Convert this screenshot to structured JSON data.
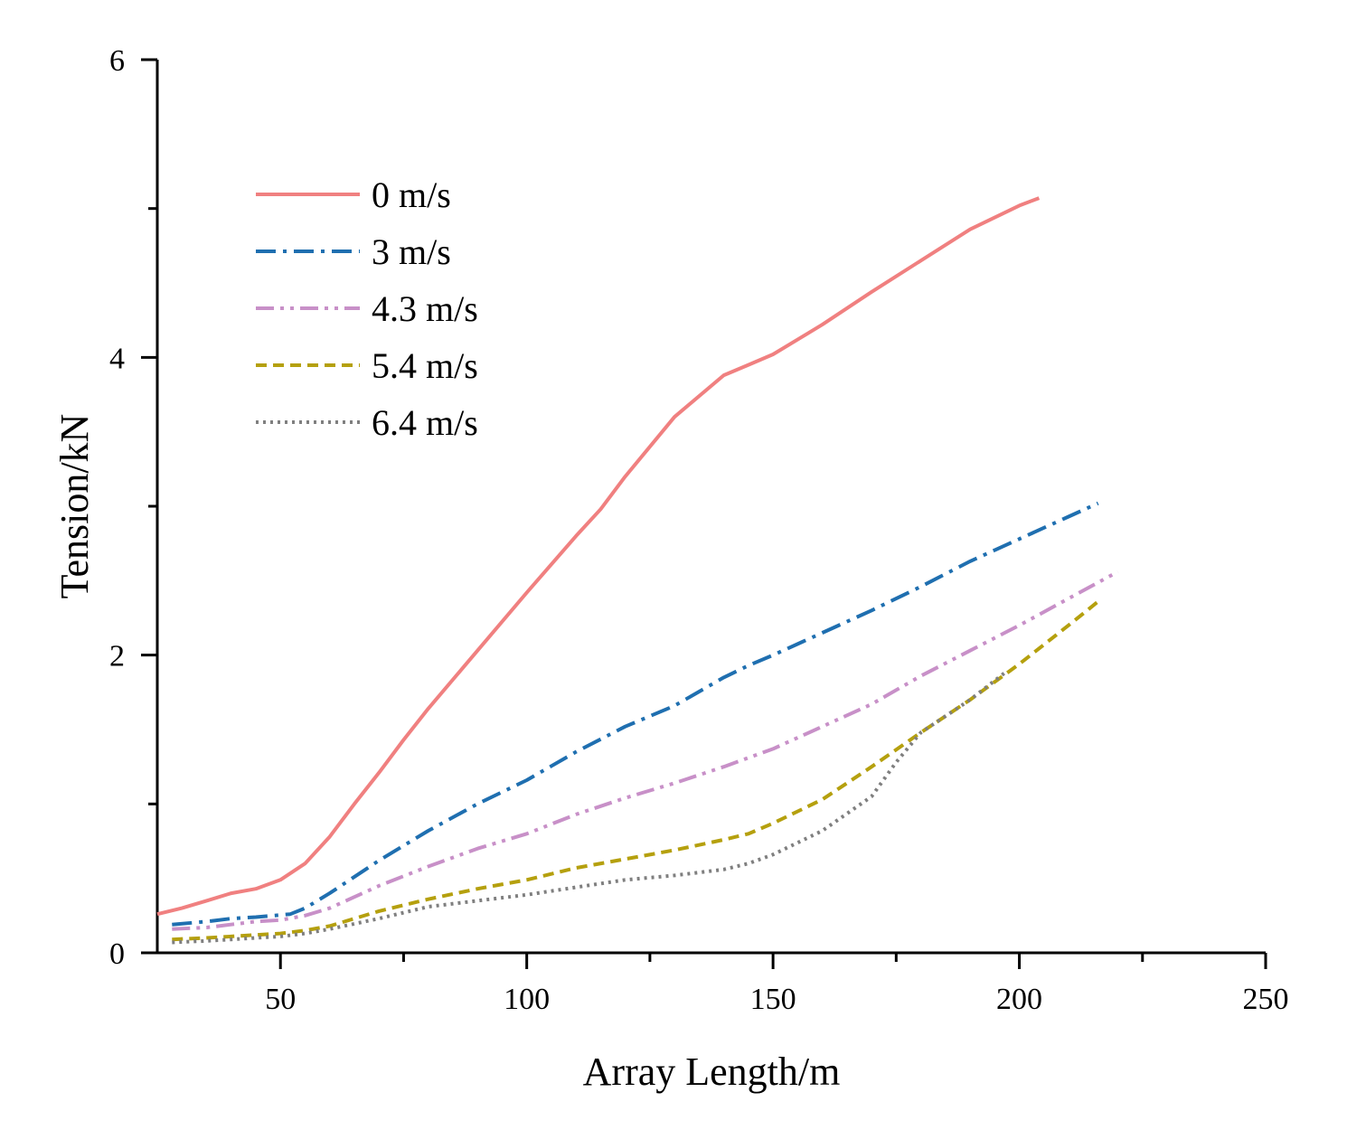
{
  "chart_data": {
    "type": "line",
    "title": "",
    "xlabel": "Array Length/m",
    "ylabel": "Tension/kN",
    "xlim": [
      25,
      250
    ],
    "ylim": [
      0,
      6
    ],
    "x_ticks": [
      50,
      100,
      150,
      200,
      250
    ],
    "x_minor_ticks": [
      25,
      75,
      125,
      175,
      225
    ],
    "y_ticks": [
      0,
      2,
      4,
      6
    ],
    "y_minor_ticks": [
      1,
      3,
      5
    ],
    "grid": false,
    "legend_position": "upper-left",
    "series": [
      {
        "name": "0 m/s",
        "color": "#f08080",
        "dash": "solid",
        "x": [
          25,
          30,
          35,
          40,
          45,
          50,
          55,
          60,
          65,
          70,
          75,
          80,
          90,
          100,
          110,
          115,
          120,
          130,
          140,
          145,
          150,
          160,
          170,
          180,
          190,
          200,
          204
        ],
        "values": [
          0.26,
          0.3,
          0.35,
          0.4,
          0.43,
          0.49,
          0.6,
          0.78,
          1.0,
          1.21,
          1.43,
          1.64,
          2.03,
          2.42,
          2.8,
          2.98,
          3.2,
          3.6,
          3.88,
          3.95,
          4.02,
          4.22,
          4.44,
          4.65,
          4.86,
          5.02,
          5.07
        ]
      },
      {
        "name": "3 m/s",
        "color": "#1f6fb0",
        "dash": "dashdot",
        "x": [
          28,
          35,
          40,
          45,
          52,
          55,
          60,
          70,
          80,
          90,
          100,
          110,
          120,
          130,
          140,
          145,
          150,
          160,
          170,
          180,
          190,
          200,
          210,
          216
        ],
        "values": [
          0.19,
          0.21,
          0.23,
          0.24,
          0.26,
          0.3,
          0.4,
          0.62,
          0.82,
          1.0,
          1.16,
          1.35,
          1.52,
          1.66,
          1.85,
          1.93,
          2.0,
          2.15,
          2.3,
          2.46,
          2.63,
          2.78,
          2.93,
          3.02
        ]
      },
      {
        "name": "4.3 m/s",
        "color": "#c890c8",
        "dash": "dashdotdot",
        "x": [
          28,
          35,
          40,
          45,
          50,
          55,
          60,
          70,
          80,
          90,
          100,
          110,
          120,
          130,
          140,
          150,
          160,
          170,
          180,
          190,
          200,
          210,
          220
        ],
        "values": [
          0.16,
          0.17,
          0.19,
          0.21,
          0.22,
          0.25,
          0.3,
          0.45,
          0.58,
          0.7,
          0.8,
          0.93,
          1.04,
          1.14,
          1.25,
          1.37,
          1.52,
          1.67,
          1.86,
          2.03,
          2.2,
          2.38,
          2.56
        ]
      },
      {
        "name": "5.4 m/s",
        "color": "#b5a00e",
        "dash": "dashed",
        "x": [
          28,
          35,
          40,
          45,
          50,
          55,
          60,
          70,
          80,
          90,
          100,
          110,
          120,
          130,
          140,
          145,
          150,
          160,
          170,
          180,
          190,
          200,
          210,
          216
        ],
        "values": [
          0.09,
          0.1,
          0.11,
          0.12,
          0.13,
          0.15,
          0.18,
          0.28,
          0.36,
          0.43,
          0.49,
          0.57,
          0.63,
          0.69,
          0.76,
          0.8,
          0.87,
          1.03,
          1.25,
          1.48,
          1.7,
          1.94,
          2.2,
          2.36
        ]
      },
      {
        "name": "6.4 m/s",
        "color": "#7f7f7f",
        "dash": "dotted",
        "x": [
          28,
          35,
          40,
          45,
          50,
          55,
          60,
          70,
          80,
          90,
          100,
          110,
          120,
          130,
          140,
          145,
          150,
          160,
          170,
          175,
          180,
          190,
          197
        ],
        "values": [
          0.07,
          0.08,
          0.09,
          0.1,
          0.11,
          0.13,
          0.16,
          0.23,
          0.31,
          0.35,
          0.39,
          0.44,
          0.49,
          0.52,
          0.56,
          0.6,
          0.66,
          0.82,
          1.05,
          1.28,
          1.48,
          1.7,
          1.88
        ]
      }
    ]
  }
}
